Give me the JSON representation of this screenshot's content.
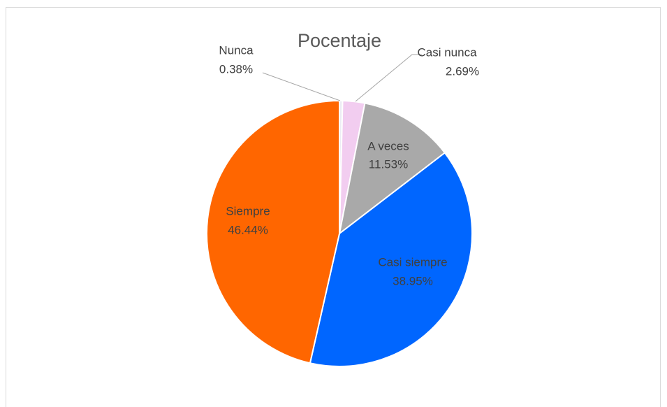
{
  "chart_data": {
    "type": "pie",
    "title": "Pocentaje",
    "categories": [
      "Nunca",
      "Casi nunca",
      "A veces",
      "Casi siempre",
      "Siempre"
    ],
    "values": [
      0.38,
      2.69,
      11.53,
      38.95,
      46.44
    ],
    "value_labels": [
      "0.38%",
      "2.69%",
      "11.53%",
      "38.95%",
      "46.44%"
    ],
    "colors": [
      "#ececf4",
      "#f2cdf0",
      "#a9a9a9",
      "#0066ff",
      "#ff6600"
    ]
  }
}
